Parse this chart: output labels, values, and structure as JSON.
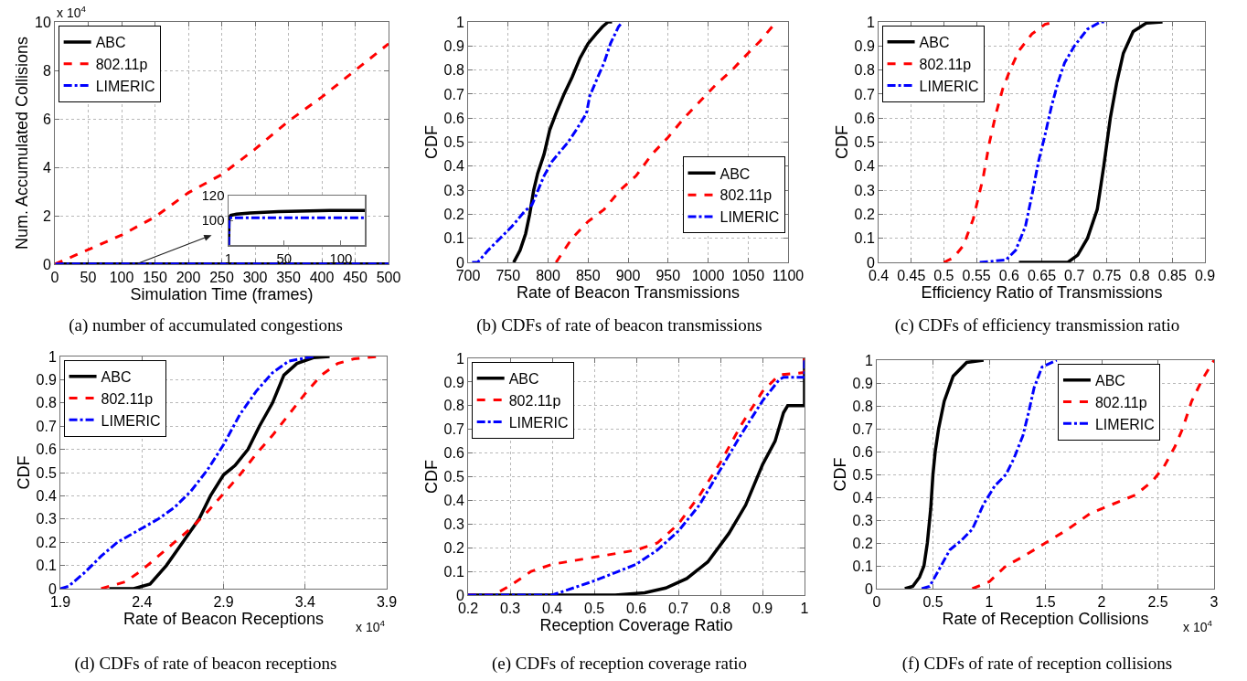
{
  "chart_data": [
    {
      "type": "line",
      "title": "(a) number of accumulated congestions",
      "xlabel": "Simulation Time (frames)",
      "ylabel": "Num. Accumulated Collisions",
      "annotations": [
        "x 10$^{4}$"
      ],
      "xlim": [
        0,
        500
      ],
      "ylim": [
        0,
        10
      ],
      "xticks": [
        0,
        50,
        100,
        150,
        200,
        250,
        300,
        350,
        400,
        450,
        500
      ],
      "yticks": [
        0,
        2,
        4,
        6,
        8,
        10
      ],
      "grid": true,
      "legend": "top left",
      "series": [
        {
          "name": "ABC",
          "color": "#000000",
          "line_style": "solid",
          "x": [
            1,
            100,
            250,
            400,
            500
          ],
          "values": [
            0.01,
            0.01,
            0.01,
            0.01,
            0.01
          ]
        },
        {
          "name": "802.11p",
          "color": "#ff0000",
          "line_style": "dashed",
          "x": [
            0,
            50,
            100,
            150,
            200,
            250,
            300,
            350,
            400,
            450,
            500
          ],
          "values": [
            0,
            0.6,
            1.2,
            1.95,
            2.95,
            3.7,
            4.75,
            5.9,
            6.9,
            8.0,
            9.1
          ]
        },
        {
          "name": "LIMERIC",
          "color": "#0000ff",
          "line_style": "dashdot",
          "x": [
            1,
            100,
            250,
            400,
            500
          ],
          "values": [
            0.01,
            0.01,
            0.01,
            0.01,
            0.01
          ]
        }
      ]
    },
    {
      "type": "line",
      "xlim": [
        1,
        121
      ],
      "ylim": [
        80,
        120
      ],
      "xticks": [
        1,
        50,
        100
      ],
      "yticks": [
        100,
        120
      ],
      "series": [
        {
          "color": "#000000",
          "line_style": "solid",
          "x": [
            1,
            1.5,
            3,
            8,
            20,
            45,
            90,
            121
          ],
          "values": [
            80,
            102,
            104,
            105,
            106,
            107,
            108,
            108
          ]
        },
        {
          "color": "#0000ff",
          "line_style": "dashdot",
          "x": [
            1,
            1.5,
            121
          ],
          "values": [
            80,
            102,
            102
          ]
        }
      ]
    },
    {
      "type": "line",
      "title": "(b) CDFs of rate of beacon transmissions",
      "xlabel": "Rate of Beacon Transmissions",
      "ylabel": "CDF",
      "xlim": [
        700,
        1100
      ],
      "ylim": [
        0,
        1
      ],
      "xticks": [
        700,
        750,
        800,
        850,
        900,
        950,
        1000,
        1050,
        1100
      ],
      "yticks": [
        0,
        0.1,
        0.2,
        0.3,
        0.4,
        0.5,
        0.6,
        0.7,
        0.8,
        0.9,
        1
      ],
      "grid": true,
      "legend": "bottom right",
      "series": [
        {
          "name": "ABC",
          "color": "#000000",
          "line_style": "solid",
          "x": [
            757,
            765,
            772,
            777,
            782,
            787,
            795,
            802,
            810,
            820,
            830,
            840,
            850,
            860,
            868,
            875,
            880
          ],
          "values": [
            0,
            0.05,
            0.12,
            0.2,
            0.3,
            0.37,
            0.45,
            0.55,
            0.62,
            0.7,
            0.77,
            0.85,
            0.91,
            0.95,
            0.98,
            1,
            1
          ]
        },
        {
          "name": "802.11p",
          "color": "#ff0000",
          "line_style": "dashed",
          "x": [
            810,
            820,
            830,
            850,
            870,
            890,
            910,
            930,
            950,
            970,
            990,
            1010,
            1030,
            1050,
            1065,
            1085
          ],
          "values": [
            0,
            0.05,
            0.1,
            0.17,
            0.22,
            0.3,
            0.36,
            0.45,
            0.52,
            0.6,
            0.67,
            0.74,
            0.8,
            0.87,
            0.92,
            1
          ]
        },
        {
          "name": "LIMERIC",
          "color": "#0000ff",
          "line_style": "dashdot",
          "x": [
            705,
            712,
            725,
            740,
            755,
            770,
            780,
            785,
            795,
            805,
            815,
            825,
            835,
            848,
            852,
            862,
            870,
            878,
            888,
            893
          ],
          "values": [
            0,
            0,
            0.05,
            0.1,
            0.15,
            0.21,
            0.24,
            0.28,
            0.36,
            0.42,
            0.46,
            0.5,
            0.55,
            0.62,
            0.69,
            0.77,
            0.83,
            0.91,
            0.98,
            1
          ]
        }
      ]
    },
    {
      "type": "line",
      "title": "(c) CDFs of efficiency transmission ratio",
      "xlabel": "Efficiency Ratio of Transmissions",
      "ylabel": "CDF",
      "xlim": [
        0.4,
        0.9
      ],
      "ylim": [
        0,
        1
      ],
      "xticks": [
        0.4,
        0.45,
        0.5,
        0.55,
        0.6,
        0.65,
        0.7,
        0.75,
        0.8,
        0.85,
        0.9
      ],
      "yticks": [
        0,
        0.1,
        0.2,
        0.3,
        0.4,
        0.5,
        0.6,
        0.7,
        0.8,
        0.9,
        1
      ],
      "grid": true,
      "legend": "top left",
      "series": [
        {
          "name": "ABC",
          "color": "#000000",
          "line_style": "solid",
          "x": [
            0.615,
            0.69,
            0.705,
            0.72,
            0.735,
            0.745,
            0.755,
            0.765,
            0.775,
            0.79,
            0.81,
            0.835
          ],
          "values": [
            0,
            0,
            0.03,
            0.1,
            0.22,
            0.4,
            0.6,
            0.75,
            0.87,
            0.96,
            0.995,
            1
          ]
        },
        {
          "name": "802.11p",
          "color": "#ff0000",
          "line_style": "dashed",
          "x": [
            0.5,
            0.515,
            0.53,
            0.545,
            0.56,
            0.57,
            0.58,
            0.59,
            0.6,
            0.615,
            0.635,
            0.655,
            0.67
          ],
          "values": [
            0,
            0.02,
            0.07,
            0.18,
            0.35,
            0.5,
            0.62,
            0.72,
            0.79,
            0.88,
            0.95,
            0.99,
            1
          ]
        },
        {
          "name": "LIMERIC",
          "color": "#0000ff",
          "line_style": "dashdot",
          "x": [
            0.555,
            0.595,
            0.61,
            0.625,
            0.635,
            0.645,
            0.655,
            0.665,
            0.675,
            0.685,
            0.7,
            0.72,
            0.74,
            0.75
          ],
          "values": [
            0,
            0.01,
            0.05,
            0.15,
            0.28,
            0.42,
            0.53,
            0.65,
            0.75,
            0.83,
            0.9,
            0.97,
            1,
            1
          ]
        }
      ]
    },
    {
      "type": "line",
      "title": "(d) CDFs of rate of beacon receptions",
      "xlabel": "Rate of Beacon Receptions",
      "ylabel": "CDF",
      "annotations": [
        "x 10$^{4}$"
      ],
      "xlim": [
        1.9,
        3.9
      ],
      "ylim": [
        0,
        1
      ],
      "xticks": [
        1.9,
        2.4,
        2.9,
        3.4,
        3.9
      ],
      "yticks": [
        0,
        0.1,
        0.2,
        0.3,
        0.4,
        0.5,
        0.6,
        0.7,
        0.8,
        0.9,
        1
      ],
      "grid": true,
      "legend": "top left",
      "series": [
        {
          "name": "ABC",
          "color": "#000000",
          "line_style": "solid",
          "x": [
            2.2,
            2.35,
            2.45,
            2.55,
            2.65,
            2.75,
            2.82,
            2.9,
            2.97,
            3.05,
            3.12,
            3.2,
            3.27,
            3.35,
            3.45,
            3.55
          ],
          "values": [
            0,
            0,
            0.02,
            0.1,
            0.2,
            0.3,
            0.4,
            0.49,
            0.53,
            0.6,
            0.7,
            0.8,
            0.92,
            0.97,
            0.995,
            1
          ]
        },
        {
          "name": "802.11p",
          "color": "#ff0000",
          "line_style": "dashed",
          "x": [
            2.15,
            2.3,
            2.4,
            2.5,
            2.6,
            2.7,
            2.8,
            2.9,
            3.0,
            3.1,
            3.2,
            3.3,
            3.4,
            3.5,
            3.6,
            3.7,
            3.85
          ],
          "values": [
            0,
            0.03,
            0.08,
            0.14,
            0.2,
            0.26,
            0.33,
            0.41,
            0.49,
            0.58,
            0.66,
            0.75,
            0.84,
            0.92,
            0.97,
            0.99,
            1
          ]
        },
        {
          "name": "LIMERIC",
          "color": "#0000ff",
          "line_style": "dashdot",
          "x": [
            1.9,
            1.95,
            2.05,
            2.15,
            2.25,
            2.35,
            2.5,
            2.6,
            2.7,
            2.8,
            2.9,
            3.0,
            3.1,
            3.2,
            3.3,
            3.45
          ],
          "values": [
            0,
            0.01,
            0.07,
            0.14,
            0.2,
            0.24,
            0.3,
            0.35,
            0.42,
            0.51,
            0.62,
            0.75,
            0.85,
            0.93,
            0.98,
            1
          ]
        }
      ]
    },
    {
      "type": "line",
      "title": "(e) CDFs of reception coverage ratio",
      "xlabel": "Reception Coverage Ratio",
      "ylabel": "CDF",
      "xlim": [
        0.2,
        1
      ],
      "ylim": [
        0,
        1
      ],
      "xticks": [
        0.2,
        0.3,
        0.4,
        0.5,
        0.6,
        0.7,
        0.8,
        0.9,
        1
      ],
      "yticks": [
        0,
        0.1,
        0.2,
        0.3,
        0.4,
        0.5,
        0.6,
        0.7,
        0.8,
        0.9,
        1
      ],
      "grid": true,
      "legend": "top left",
      "series": [
        {
          "name": "ABC",
          "color": "#000000",
          "line_style": "solid",
          "x": [
            0.2,
            0.55,
            0.62,
            0.67,
            0.72,
            0.77,
            0.82,
            0.86,
            0.9,
            0.93,
            0.95,
            0.96,
            1,
            1
          ],
          "values": [
            0,
            0,
            0.01,
            0.03,
            0.07,
            0.14,
            0.26,
            0.38,
            0.55,
            0.65,
            0.77,
            0.8,
            0.8,
            1
          ]
        },
        {
          "name": "802.11p",
          "color": "#ff0000",
          "line_style": "dashed",
          "x": [
            0.2,
            0.26,
            0.3,
            0.35,
            0.4,
            0.5,
            0.6,
            0.65,
            0.7,
            0.75,
            0.8,
            0.85,
            0.9,
            0.94,
            1,
            1
          ],
          "values": [
            0,
            0,
            0.04,
            0.1,
            0.13,
            0.16,
            0.19,
            0.22,
            0.3,
            0.42,
            0.56,
            0.72,
            0.86,
            0.93,
            0.94,
            1
          ]
        },
        {
          "name": "LIMERIC",
          "color": "#0000ff",
          "line_style": "dashdot",
          "x": [
            0.2,
            0.4,
            0.45,
            0.5,
            0.6,
            0.65,
            0.7,
            0.75,
            0.8,
            0.85,
            0.9,
            0.94,
            0.95,
            1,
            1
          ],
          "values": [
            0,
            0,
            0.03,
            0.06,
            0.13,
            0.19,
            0.27,
            0.38,
            0.53,
            0.68,
            0.82,
            0.91,
            0.92,
            0.92,
            1
          ]
        }
      ]
    },
    {
      "type": "line",
      "title": "(f) CDFs of rate of reception collisions",
      "xlabel": "Rate of Reception Collisions",
      "ylabel": "CDF",
      "annotations": [
        "x 10$^{4}$"
      ],
      "xlim": [
        0,
        3
      ],
      "ylim": [
        0,
        1
      ],
      "xticks": [
        0,
        0.5,
        1,
        1.5,
        2,
        2.5,
        3
      ],
      "yticks": [
        0,
        0.1,
        0.2,
        0.3,
        0.4,
        0.5,
        0.6,
        0.7,
        0.8,
        0.9,
        1
      ],
      "grid": true,
      "legend": "top right",
      "series": [
        {
          "name": "ABC",
          "color": "#000000",
          "line_style": "solid",
          "x": [
            0.25,
            0.32,
            0.38,
            0.42,
            0.45,
            0.48,
            0.5,
            0.52,
            0.55,
            0.6,
            0.68,
            0.8,
            0.95
          ],
          "values": [
            0,
            0.01,
            0.05,
            0.1,
            0.2,
            0.35,
            0.5,
            0.6,
            0.7,
            0.82,
            0.93,
            0.99,
            1
          ]
        },
        {
          "name": "802.11p",
          "color": "#ff0000",
          "line_style": "dashed",
          "x": [
            0.85,
            1,
            1.15,
            1.3,
            1.5,
            1.7,
            1.9,
            2.1,
            2.3,
            2.45,
            2.55,
            2.65,
            2.72,
            2.8,
            2.9,
            3.0
          ],
          "values": [
            0,
            0.03,
            0.1,
            0.14,
            0.2,
            0.26,
            0.33,
            0.37,
            0.41,
            0.47,
            0.53,
            0.62,
            0.7,
            0.82,
            0.92,
            1
          ]
        },
        {
          "name": "LIMERIC",
          "color": "#0000ff",
          "line_style": "dashdot",
          "x": [
            0.4,
            0.47,
            0.55,
            0.65,
            0.75,
            0.85,
            0.95,
            1.05,
            1.15,
            1.22,
            1.3,
            1.35,
            1.4,
            1.47,
            1.6
          ],
          "values": [
            0,
            0.01,
            0.08,
            0.17,
            0.21,
            0.26,
            0.37,
            0.45,
            0.5,
            0.57,
            0.67,
            0.77,
            0.88,
            0.97,
            1
          ]
        }
      ]
    }
  ]
}
